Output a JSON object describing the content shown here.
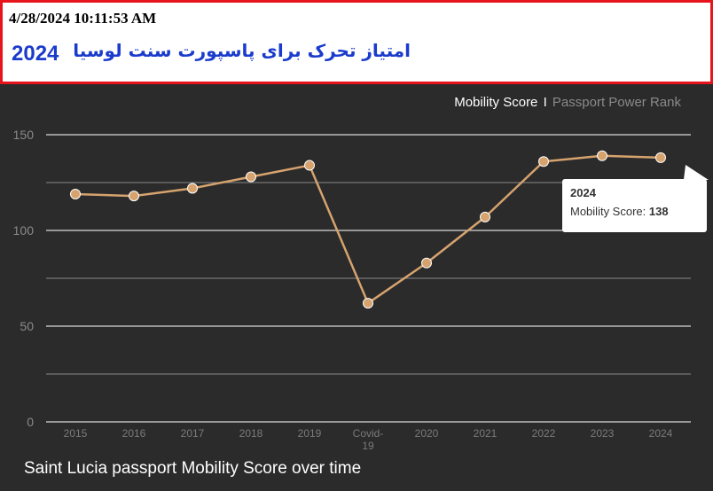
{
  "header": {
    "timestamp": "4/28/2024 10:11:53 AM",
    "title_text": "امتیاز تحرک برای پاسپورت سنت لوسیا",
    "title_year": "2024",
    "border_color": "#e8141c",
    "title_color": "#1a3bcc"
  },
  "tabs": {
    "active": "Mobility Score",
    "separator": "I",
    "inactive": "Passport Power Rank"
  },
  "tooltip": {
    "year": "2024",
    "label": "Mobility Score:",
    "value": "138"
  },
  "caption": "Saint Lucia passport Mobility Score over time",
  "chart_data": {
    "type": "line",
    "categories": [
      "2015",
      "2016",
      "2017",
      "2018",
      "2019",
      "Covid-19",
      "2020",
      "2021",
      "2022",
      "2023",
      "2024"
    ],
    "category_lines": [
      [
        "2015"
      ],
      [
        "2016"
      ],
      [
        "2017"
      ],
      [
        "2018"
      ],
      [
        "2019"
      ],
      [
        "Covid-",
        "19"
      ],
      [
        "2020"
      ],
      [
        "2021"
      ],
      [
        "2022"
      ],
      [
        "2023"
      ],
      [
        "2024"
      ]
    ],
    "series": [
      {
        "values": [
          119,
          118,
          122,
          128,
          134,
          62,
          83,
          107,
          136,
          139,
          138
        ],
        "color": "#d6a36e"
      }
    ],
    "ylim": [
      0,
      150
    ],
    "yticks": [
      0,
      50,
      100,
      150
    ],
    "grid": true,
    "background": "#2b2b2b"
  }
}
